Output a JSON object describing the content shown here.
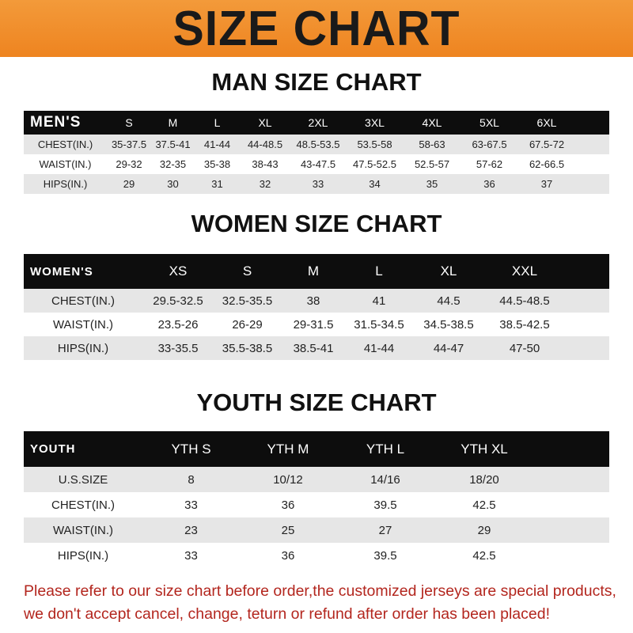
{
  "title": "SIZE CHART",
  "colors": {
    "banner": "#ee8420",
    "header_row": "#0d0d0d",
    "stripe": "#e6e6e6",
    "notice": "#b3261e"
  },
  "men": {
    "title": "MAN SIZE CHART",
    "header": [
      "MEN'S",
      "S",
      "M",
      "L",
      "XL",
      "2XL",
      "3XL",
      "4XL",
      "5XL",
      "6XL"
    ],
    "rows": [
      [
        "CHEST(IN.)",
        "35-37.5",
        "37.5-41",
        "41-44",
        "44-48.5",
        "48.5-53.5",
        "53.5-58",
        "58-63",
        "63-67.5",
        "67.5-72"
      ],
      [
        "WAIST(IN.)",
        "29-32",
        "32-35",
        "35-38",
        "38-43",
        "43-47.5",
        "47.5-52.5",
        "52.5-57",
        "57-62",
        "62-66.5"
      ],
      [
        "HIPS(IN.)",
        "29",
        "30",
        "31",
        "32",
        "33",
        "34",
        "35",
        "36",
        "37"
      ]
    ]
  },
  "women": {
    "title": "WOMEN SIZE CHART",
    "header": [
      "WOMEN'S",
      "XS",
      "S",
      "M",
      "L",
      "XL",
      "XXL"
    ],
    "rows": [
      [
        "CHEST(IN.)",
        "29.5-32.5",
        "32.5-35.5",
        "38",
        "41",
        "44.5",
        "44.5-48.5"
      ],
      [
        "WAIST(IN.)",
        "23.5-26",
        "26-29",
        "29-31.5",
        "31.5-34.5",
        "34.5-38.5",
        "38.5-42.5"
      ],
      [
        "HIPS(IN.)",
        "33-35.5",
        "35.5-38.5",
        "38.5-41",
        "41-44",
        "44-47",
        "47-50"
      ]
    ]
  },
  "youth": {
    "title": "YOUTH SIZE CHART",
    "header": [
      "YOUTH",
      "YTH S",
      "YTH M",
      "YTH L",
      "YTH XL"
    ],
    "rows": [
      [
        "U.S.SIZE",
        "8",
        "10/12",
        "14/16",
        "18/20"
      ],
      [
        "CHEST(IN.)",
        "33",
        "36",
        "39.5",
        "42.5"
      ],
      [
        "WAIST(IN.)",
        "23",
        "25",
        "27",
        "29"
      ],
      [
        "HIPS(IN.)",
        "33",
        "36",
        "39.5",
        "42.5"
      ]
    ]
  },
  "notice": [
    "Please refer to our size chart before order,the customized jerseys are special products,",
    "we don't accept cancel, change, teturn or refund after order has been placed!"
  ]
}
